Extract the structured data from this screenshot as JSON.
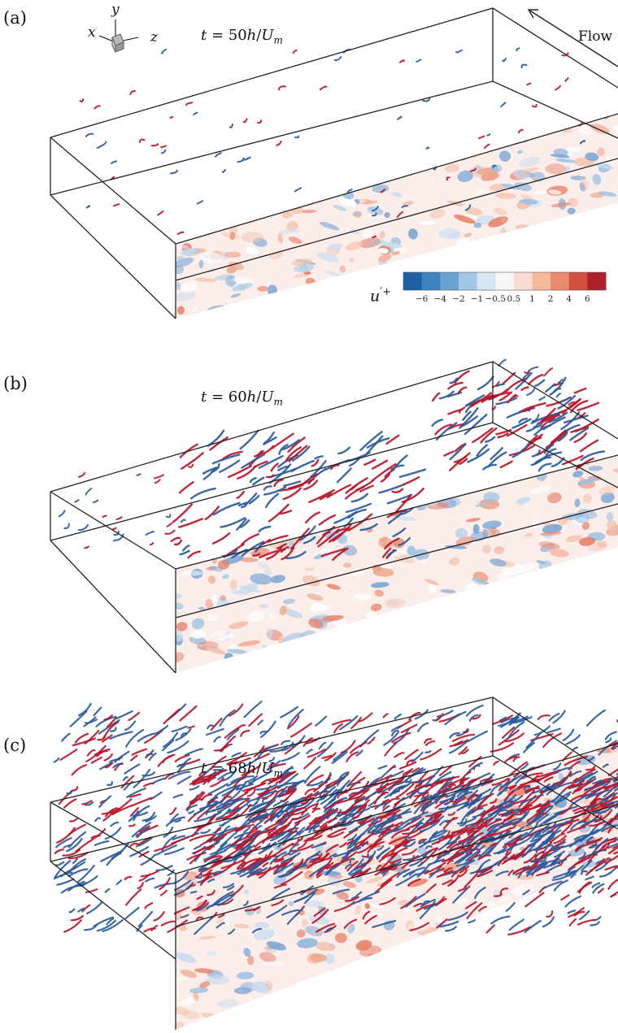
{
  "panels": [
    {
      "label": "(a)",
      "time": "t = 50h/U_m",
      "time_t": "t",
      "time_eq": " = 50",
      "time_h": "h",
      "time_slash": "/",
      "time_U": "U",
      "time_sub": "m",
      "density": "sparse"
    },
    {
      "label": "(b)",
      "time": "t = 60h/U_m",
      "time_t": "t",
      "time_eq": " = 60",
      "time_h": "h",
      "time_slash": "/",
      "time_U": "U",
      "time_sub": "m",
      "density": "moderate"
    },
    {
      "label": "(c)",
      "time": "t = 68h/U_m",
      "time_t": "t",
      "time_eq": " = 68",
      "time_h": "h",
      "time_slash": "/",
      "time_U": "U",
      "time_sub": "m",
      "density": "dense"
    }
  ],
  "axes_triad": {
    "x": "x",
    "y": "y",
    "z": "z"
  },
  "flow": {
    "label": "Flow",
    "direction": "upper-left"
  },
  "colorbar": {
    "title": "u′⁺",
    "title_base": "u",
    "title_sup": "′+",
    "ticks": [
      "−6",
      "−4",
      "−2",
      "−1",
      "−0.5",
      "0.5",
      "1",
      "2",
      "4",
      "6"
    ],
    "colors": [
      "#1f5fa6",
      "#3c82c0",
      "#6aa3d2",
      "#a2c7e4",
      "#d5e5f3",
      "#f6f6f6",
      "#f8dccf",
      "#f4b89b",
      "#e88a6b",
      "#d2503f",
      "#b01f2e"
    ]
  },
  "colors": {
    "red": "#b8162a",
    "blue": "#2a5b9c",
    "light_red": "#f0a68b",
    "light_blue": "#9bc2e2",
    "edge": "#222222"
  }
}
